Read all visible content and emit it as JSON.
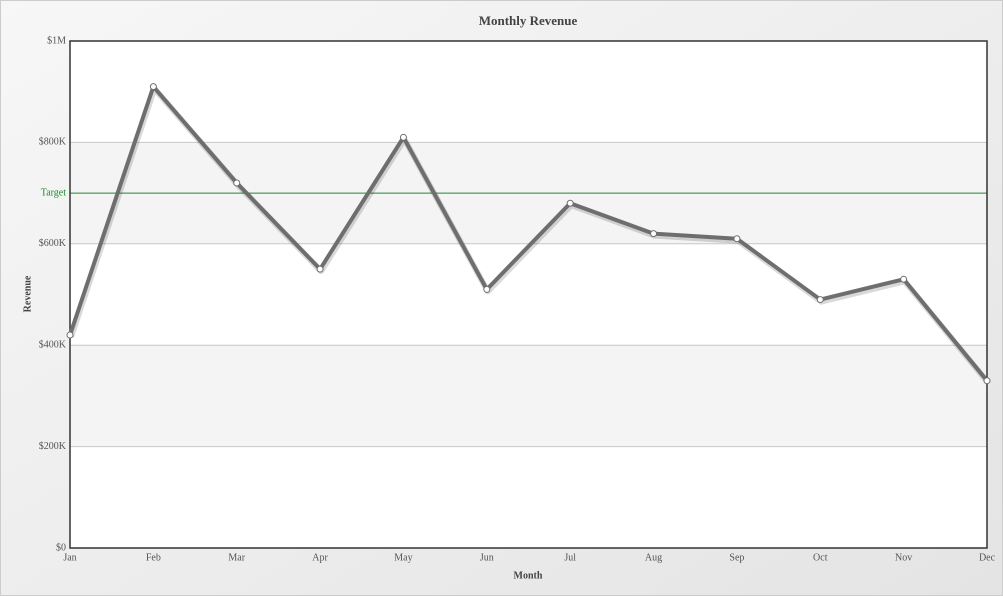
{
  "chart_data": {
    "type": "line",
    "title": "Monthly Revenue",
    "x_label": "Month",
    "y_label": "Revenue",
    "categories": [
      "Jan",
      "Feb",
      "Mar",
      "Apr",
      "May",
      "Jun",
      "Jul",
      "Aug",
      "Sep",
      "Oct",
      "Nov",
      "Dec"
    ],
    "series": [
      {
        "name": "Revenue",
        "color": "#6e6e6e",
        "values": [
          420000,
          910000,
          720000,
          550000,
          810000,
          510000,
          680000,
          620000,
          610000,
          490000,
          530000,
          330000
        ]
      }
    ],
    "ylim": [
      0,
      1000000
    ],
    "yticks": [
      {
        "value": 0,
        "label": "$0"
      },
      {
        "value": 200000,
        "label": "$200K"
      },
      {
        "value": 400000,
        "label": "$400K"
      },
      {
        "value": 600000,
        "label": "$600K"
      },
      {
        "value": 800000,
        "label": "$800K"
      },
      {
        "value": 1000000,
        "label": "$1M"
      }
    ],
    "grid": true,
    "alternate_bands": true,
    "target": {
      "value": 700000,
      "label": "Target",
      "color": "#1f8a2e"
    }
  }
}
